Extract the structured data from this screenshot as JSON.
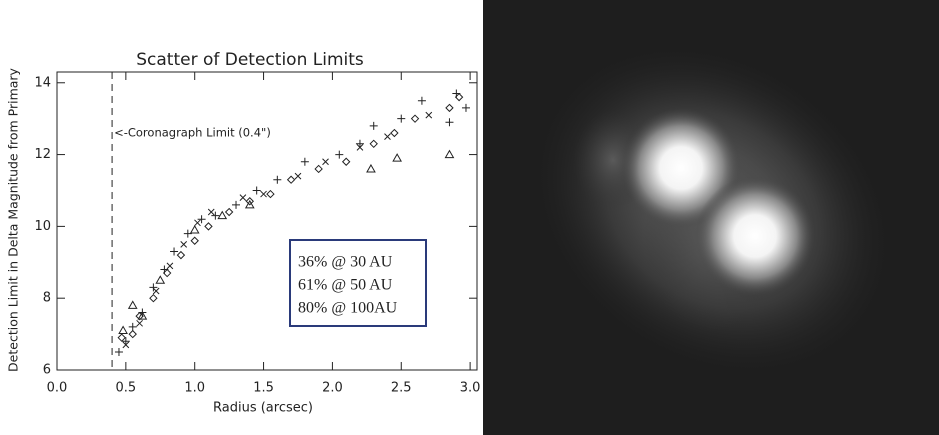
{
  "chart_data": {
    "type": "scatter",
    "title": "Scatter of Detection Limits",
    "xlabel": "Radius (arcsec)",
    "ylabel": "Detection Limit in Delta Magnitude from Primary",
    "xlim": [
      0,
      3.05
    ],
    "ylim": [
      6,
      14.3
    ],
    "xticks": [
      {
        "value": 0,
        "label": "0.0"
      },
      {
        "value": 0.5,
        "label": "0.5"
      },
      {
        "value": 1,
        "label": "1.0"
      },
      {
        "value": 1.5,
        "label": "1.5"
      },
      {
        "value": 2,
        "label": "2.0"
      },
      {
        "value": 2.5,
        "label": "2.5"
      },
      {
        "value": 3,
        "label": "3.0"
      }
    ],
    "yticks": [
      6,
      8,
      10,
      12,
      14
    ],
    "coronagraph_limit": 0.4,
    "annotation": "<-Coronagraph Limit (0.4\")",
    "box_lines": [
      "36% @ 30 AU",
      "61% @ 50 AU",
      "80% @ 100AU"
    ],
    "color": "#222222",
    "series": [
      {
        "marker": "plus",
        "x": [
          0.45,
          0.5,
          0.55,
          0.62,
          0.7,
          0.78,
          0.85,
          0.95,
          1.05,
          1.15,
          1.3,
          1.45,
          1.6,
          1.8,
          2.05,
          2.2,
          2.3,
          2.5,
          2.65,
          2.85,
          2.9,
          2.97
        ],
        "values": [
          6.5,
          6.8,
          7.2,
          7.6,
          8.3,
          8.8,
          9.3,
          9.8,
          10.2,
          10.3,
          10.6,
          11.0,
          11.3,
          11.8,
          12.0,
          12.3,
          12.8,
          13.0,
          13.5,
          12.9,
          13.7,
          13.3
        ]
      },
      {
        "marker": "diamond",
        "x": [
          0.47,
          0.55,
          0.6,
          0.7,
          0.8,
          0.9,
          1.0,
          1.1,
          1.25,
          1.4,
          1.55,
          1.7,
          1.9,
          2.1,
          2.3,
          2.45,
          2.6,
          2.85,
          2.92
        ],
        "values": [
          6.9,
          7.0,
          7.5,
          8.0,
          8.7,
          9.2,
          9.6,
          10.0,
          10.4,
          10.7,
          10.9,
          11.3,
          11.6,
          11.8,
          12.3,
          12.6,
          13.0,
          13.3,
          13.6
        ]
      },
      {
        "marker": "triangle",
        "x": [
          0.48,
          0.55,
          0.62,
          0.75,
          1.0,
          1.2,
          1.4,
          2.28,
          2.47,
          2.85
        ],
        "values": [
          7.1,
          7.8,
          7.5,
          8.5,
          9.9,
          10.3,
          10.6,
          11.6,
          11.9,
          12.0
        ]
      },
      {
        "marker": "x",
        "x": [
          0.5,
          0.6,
          0.72,
          0.82,
          0.92,
          1.02,
          1.12,
          1.35,
          1.5,
          1.75,
          1.95,
          2.2,
          2.4,
          2.7
        ],
        "values": [
          6.7,
          7.3,
          8.2,
          8.9,
          9.5,
          10.1,
          10.4,
          10.8,
          10.9,
          11.4,
          11.8,
          12.2,
          12.5,
          13.1
        ]
      }
    ]
  }
}
